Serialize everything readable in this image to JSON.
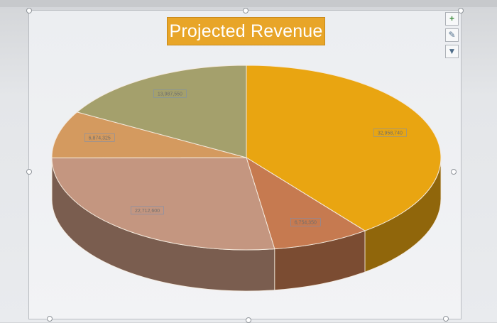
{
  "chart_data": {
    "type": "pie",
    "title": "Projected Revenue",
    "slices": [
      {
        "value": 32958740,
        "label": "32,958,740",
        "color": "#e9a511"
      },
      {
        "value": 6754350,
        "label": "6,754,350",
        "color": "#c67a50"
      },
      {
        "value": 22712600,
        "label": "22,712,600",
        "color": "#c49680"
      },
      {
        "value": 6874325,
        "label": "6,874,325",
        "color": "#d49a5f"
      },
      {
        "value": 13987550,
        "label": "13,987,550",
        "color": "#a4a06c"
      }
    ],
    "start_angle_deg": -90,
    "three_d": true
  },
  "toolbar": {
    "add_icon": "plus-icon",
    "style_icon": "brush-icon",
    "filter_icon": "filter-icon"
  }
}
